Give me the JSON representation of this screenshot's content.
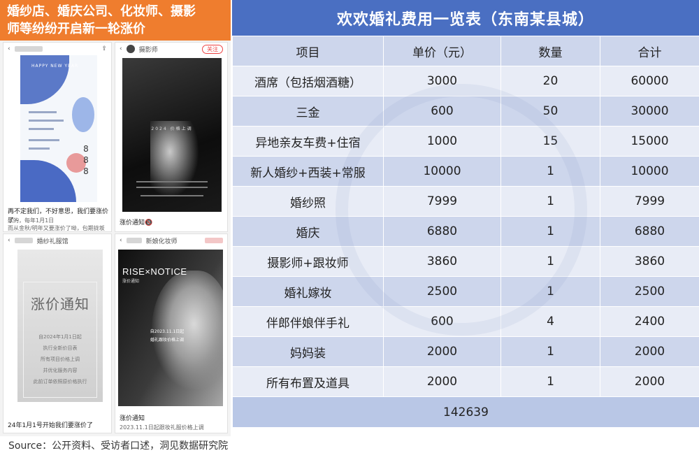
{
  "left_panel": {
    "banner_line1": "婚纱店、婚庆公司、化妆师、摄影",
    "banner_line2": "师等纷纷开启新一轮涨价",
    "shot1": {
      "poster_title": "HAPPY NEW YEAR",
      "digits": [
        "8",
        "8",
        "8"
      ],
      "caption_line1": "再不定我们，不好意思，我们要涨价了~",
      "caption_line2": "欸的，每年1月1日",
      "caption_line3": "而从金秋/明年又要涨价了呦，包期拢坂省理。"
    },
    "shot2": {
      "account": "摄影师",
      "follow_label": "关注",
      "poster_title": "2024 价格上调",
      "caption": "涨价通知🔞"
    },
    "shot3": {
      "account": "婚纱礼服馆",
      "poster_title": "涨价通知",
      "poster_lines": [
        "自2024年1月1日起",
        "执行全新价目表",
        "所有项目价格上调",
        "并优化服务内容",
        "此前订单依照原价格执行"
      ],
      "caption": "24年1月1号开始我们要涨价了"
    },
    "shot4": {
      "account": "新娘化妆师",
      "poster_title": "RISE×NOTICE",
      "poster_sub": "涨价通知",
      "poster_center1": "自2023.11.1日起",
      "poster_center2": "婚礼跟妆价格上调",
      "caption": "涨价通知",
      "caption2": "2023.11.1日起跟妆礼服价格上调"
    }
  },
  "table": {
    "title": "欢欢婚礼费用一览表（东南某县城）",
    "headers": [
      "项目",
      "单价（元）",
      "数量",
      "合计"
    ],
    "rows": [
      [
        "酒席（包括烟酒糖）",
        "3000",
        "20",
        "60000"
      ],
      [
        "三金",
        "600",
        "50",
        "30000"
      ],
      [
        "异地亲友车费+住宿",
        "1000",
        "15",
        "15000"
      ],
      [
        "新人婚纱+西装+常服",
        "10000",
        "1",
        "10000"
      ],
      [
        "婚纱照",
        "7999",
        "1",
        "7999"
      ],
      [
        "婚庆",
        "6880",
        "1",
        "6880"
      ],
      [
        "摄影师+跟妆师",
        "3860",
        "1",
        "3860"
      ],
      [
        "婚礼嫁妆",
        "2500",
        "1",
        "2500"
      ],
      [
        "伴郎伴娘伴手礼",
        "600",
        "4",
        "2400"
      ],
      [
        "妈妈装",
        "2000",
        "1",
        "2000"
      ],
      [
        "所有布置及道具",
        "2000",
        "1",
        "2000"
      ]
    ],
    "total": "142639"
  },
  "source": "Source：公开资料、受访者口述，洞见数据研究院",
  "colors": {
    "banner": "#ef7d2e",
    "title_bar": "#4a6fc2",
    "row_dark": "#cdd6ec",
    "row_light": "#e8ecf6"
  }
}
